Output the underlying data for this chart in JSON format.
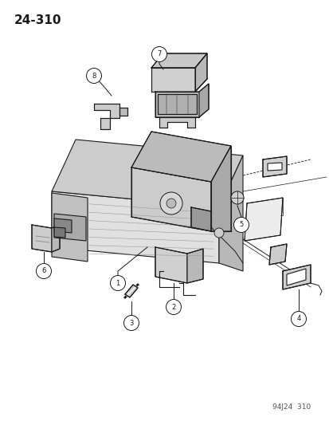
{
  "page_number": "24-310",
  "footer_text": "94J24  310",
  "bg": "#ffffff",
  "lc": "#1a1a1a",
  "figsize": [
    4.14,
    5.33
  ],
  "dpi": 100
}
